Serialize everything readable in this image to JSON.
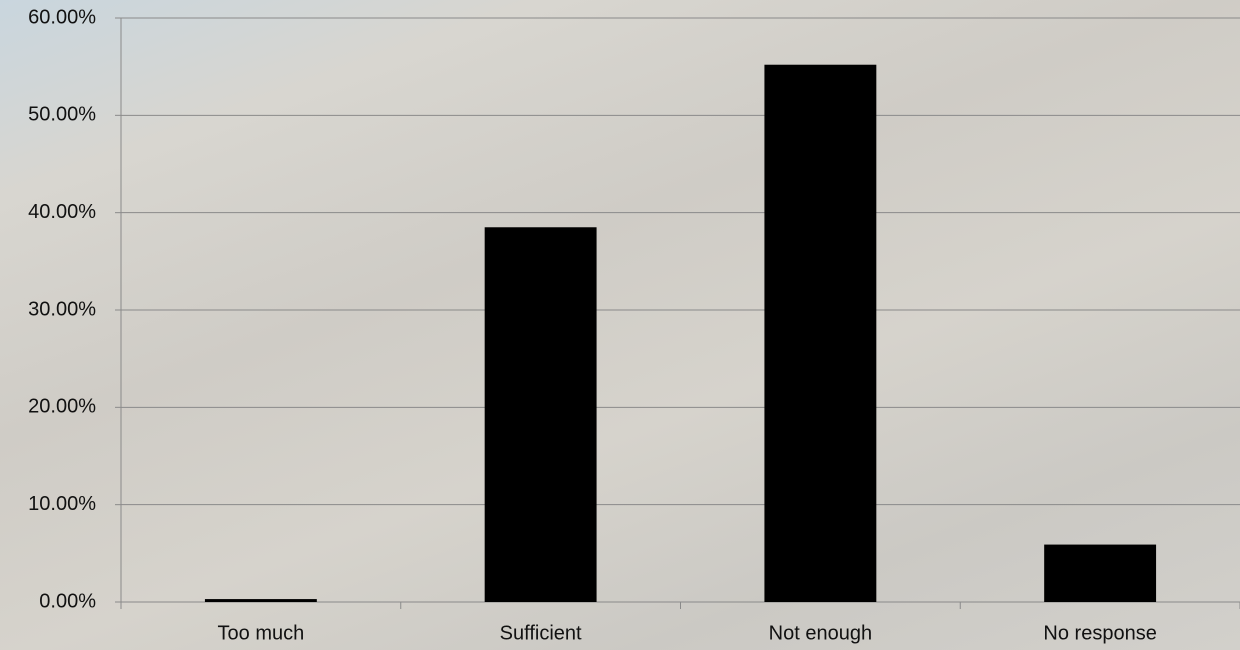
{
  "chart_data": {
    "type": "bar",
    "categories": [
      "Too much",
      "Sufficient",
      "Not enough",
      "No response"
    ],
    "values": [
      0.3,
      38.5,
      55.2,
      5.9
    ],
    "color": "#000000",
    "ylim": [
      0,
      60
    ],
    "yticks": [
      {
        "value": 0,
        "label": "0.00%"
      },
      {
        "value": 10,
        "label": "10.00%"
      },
      {
        "value": 20,
        "label": "20.00%"
      },
      {
        "value": 30,
        "label": "30.00%"
      },
      {
        "value": 40,
        "label": "40.00%"
      },
      {
        "value": 50,
        "label": "50.00%"
      },
      {
        "value": 60,
        "label": "60.00%"
      }
    ],
    "grid": true
  }
}
